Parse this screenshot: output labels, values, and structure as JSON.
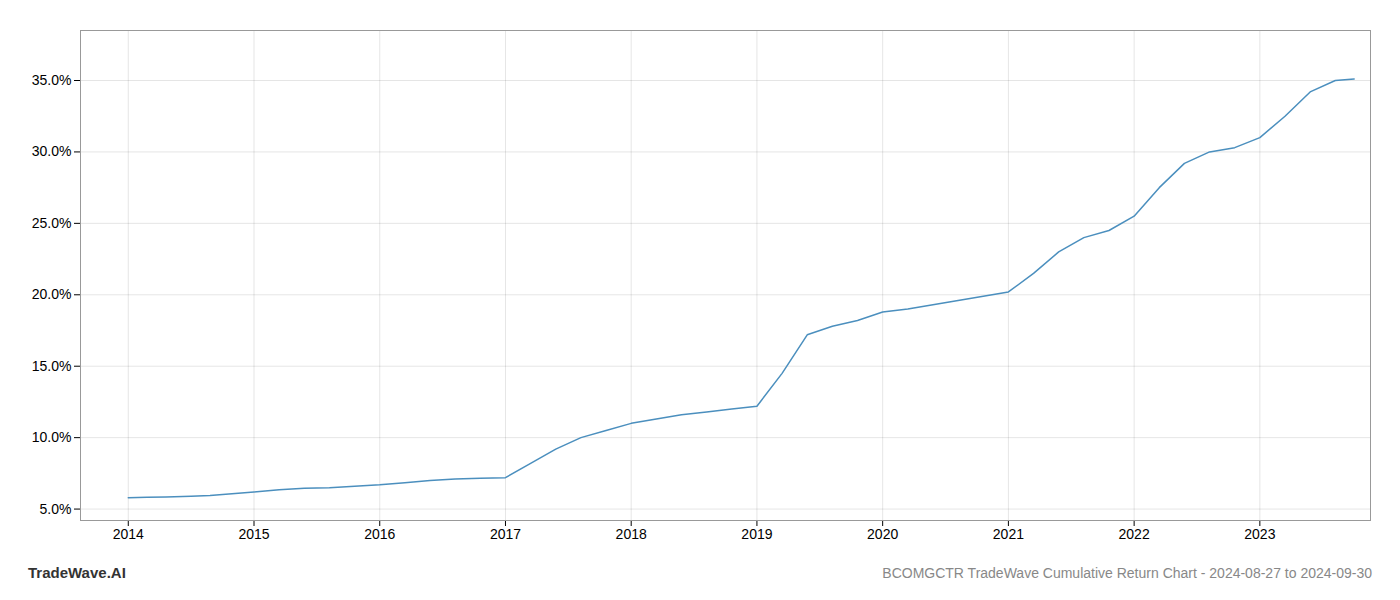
{
  "chart_data": {
    "type": "line",
    "title": "BCOMGCTR TradeWave Cumulative Return Chart - 2024-08-27 to 2024-09-30",
    "annotations": [
      "TradeWave.AI"
    ],
    "x": [
      2014.0,
      2014.15,
      2014.3,
      2014.5,
      2014.65,
      2014.8,
      2015.0,
      2015.2,
      2015.4,
      2015.6,
      2015.8,
      2016.0,
      2016.2,
      2016.4,
      2016.6,
      2016.8,
      2017.0,
      2017.2,
      2017.4,
      2017.6,
      2017.8,
      2018.0,
      2018.2,
      2018.4,
      2018.6,
      2018.8,
      2019.0,
      2019.2,
      2019.4,
      2019.6,
      2019.8,
      2020.0,
      2020.2,
      2020.4,
      2020.6,
      2020.8,
      2021.0,
      2021.2,
      2021.4,
      2021.6,
      2021.8,
      2022.0,
      2022.2,
      2022.4,
      2022.6,
      2022.8,
      2023.0,
      2023.2,
      2023.4,
      2023.6,
      2023.75
    ],
    "values": [
      5.8,
      5.82,
      5.85,
      5.9,
      5.95,
      6.05,
      6.2,
      6.35,
      6.45,
      6.5,
      6.6,
      6.7,
      6.85,
      7.0,
      7.1,
      7.15,
      7.2,
      8.2,
      9.2,
      10.0,
      10.5,
      11.0,
      11.3,
      11.6,
      11.8,
      12.0,
      12.2,
      14.5,
      17.2,
      17.8,
      18.2,
      18.8,
      19.0,
      19.3,
      19.6,
      19.9,
      20.2,
      21.5,
      23.0,
      24.0,
      24.5,
      25.5,
      27.5,
      29.2,
      30.0,
      30.3,
      31.0,
      32.5,
      34.2,
      35.0,
      35.1
    ],
    "color": "#4b8fbe",
    "xlim": [
      2013.62,
      2023.88
    ],
    "ylim": [
      4.2,
      38.5
    ],
    "xticks": [
      2014,
      2015,
      2016,
      2017,
      2018,
      2019,
      2020,
      2021,
      2022,
      2023
    ],
    "yticks": [
      {
        "value": 5.0,
        "label": "5.0%"
      },
      {
        "value": 10.0,
        "label": "10.0%"
      },
      {
        "value": 15.0,
        "label": "15.0%"
      },
      {
        "value": 20.0,
        "label": "20.0%"
      },
      {
        "value": 25.0,
        "label": "25.0%"
      },
      {
        "value": 30.0,
        "label": "30.0%"
      },
      {
        "value": 35.0,
        "label": "35.0%"
      }
    ],
    "grid": true
  }
}
